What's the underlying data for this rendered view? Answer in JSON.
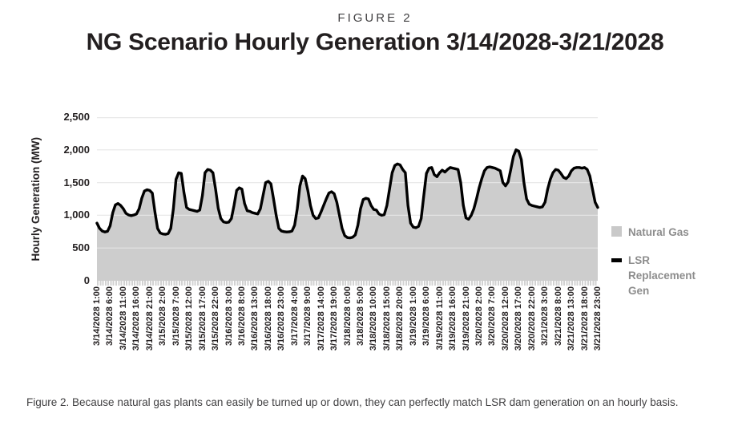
{
  "figure_label": "FIGURE 2",
  "title": "NG Scenario Hourly Generation 3/14/2028-3/21/2028",
  "caption": "Figure 2. Because natural gas plants can easily be turned up or down, they can perfectly match LSR dam generation on an hourly basis.",
  "legend": {
    "items": [
      {
        "label": "Natural Gas",
        "swatch": "square",
        "color": "#c9c9c9"
      },
      {
        "label": "LSR Replacement Gen",
        "swatch": "dash",
        "color": "#000000"
      }
    ]
  },
  "colors": {
    "background": "#ffffff",
    "area_fill": "#cdcdcd",
    "line": "#000000",
    "gridline": "#d9d9d9",
    "axis_text": "#231f20",
    "title_text": "#231f20",
    "figure_label_text": "#414042",
    "legend_text": "#8d8d8d",
    "caption_text": "#414042"
  },
  "chart_data": {
    "type": "area",
    "title": "NG Scenario Hourly Generation 3/14/2028-3/21/2028",
    "xlabel": "",
    "ylabel": "Hourly Generation (MW)",
    "ylim": [
      0,
      2500
    ],
    "ytick_values": [
      0,
      500,
      1000,
      1500,
      2000,
      2500
    ],
    "ytick_labels": [
      "0",
      "500",
      "1,000",
      "1,500",
      "2,000",
      "2,500"
    ],
    "grid": "horizontal",
    "legend_position": "right",
    "x_unit": "hour",
    "x_start": "3/14/2028 1:00",
    "x_end": "3/21/2028 23:00",
    "x_tick_interval_hours": 5,
    "x_tick_labels": [
      "3/14/2028 1:00",
      "3/14/2028 6:00",
      "3/14/2028 11:00",
      "3/14/2028 16:00",
      "3/14/2028 21:00",
      "3/15/2028 2:00",
      "3/15/2028 7:00",
      "3/15/2028 12:00",
      "3/15/2028 17:00",
      "3/15/2028 22:00",
      "3/16/2028 3:00",
      "3/16/2028 8:00",
      "3/16/2028 13:00",
      "3/16/2028 18:00",
      "3/16/2028 23:00",
      "3/17/2028 4:00",
      "3/17/2028 9:00",
      "3/17/2028 14:00",
      "3/17/2028 19:00",
      "3/18/2028 0:00",
      "3/18/2028 5:00",
      "3/18/2028 10:00",
      "3/18/2028 15:00",
      "3/18/2028 20:00",
      "3/19/2028 1:00",
      "3/19/2028 6:00",
      "3/19/2028 11:00",
      "3/19/2028 16:00",
      "3/19/2028 21:00",
      "3/20/2028 2:00",
      "3/20/2028 7:00",
      "3/20/2028 12:00",
      "3/20/2028 17:00",
      "3/20/2028 22:00",
      "3/21/2028 3:00",
      "3/21/2028 8:00",
      "3/21/2028 13:00",
      "3/21/2028 18:00",
      "3/21/2028 23:00"
    ],
    "series": [
      {
        "name": "Natural Gas",
        "render": "area",
        "color": "#cdcdcd",
        "values": [
          880,
          800,
          760,
          745,
          755,
          840,
          1040,
          1160,
          1180,
          1150,
          1100,
          1030,
          1005,
          995,
          1005,
          1020,
          1100,
          1260,
          1370,
          1390,
          1380,
          1340,
          1050,
          800,
          730,
          715,
          710,
          720,
          800,
          1100,
          1550,
          1650,
          1640,
          1350,
          1120,
          1090,
          1080,
          1070,
          1060,
          1080,
          1300,
          1650,
          1700,
          1690,
          1650,
          1400,
          1110,
          950,
          900,
          890,
          895,
          950,
          1150,
          1380,
          1420,
          1400,
          1180,
          1070,
          1060,
          1040,
          1030,
          1020,
          1100,
          1300,
          1500,
          1520,
          1480,
          1250,
          1000,
          800,
          760,
          750,
          745,
          748,
          760,
          850,
          1100,
          1450,
          1600,
          1560,
          1380,
          1150,
          1000,
          950,
          960,
          1050,
          1150,
          1250,
          1340,
          1360,
          1330,
          1200,
          1000,
          800,
          690,
          660,
          655,
          665,
          700,
          850,
          1100,
          1240,
          1260,
          1250,
          1150,
          1090,
          1080,
          1020,
          1000,
          1010,
          1150,
          1400,
          1650,
          1760,
          1785,
          1770,
          1700,
          1650,
          1150,
          880,
          820,
          810,
          830,
          950,
          1300,
          1640,
          1720,
          1730,
          1620,
          1590,
          1650,
          1690,
          1660,
          1700,
          1730,
          1720,
          1710,
          1700,
          1500,
          1150,
          960,
          940,
          1000,
          1100,
          1250,
          1420,
          1560,
          1680,
          1730,
          1740,
          1730,
          1720,
          1700,
          1680,
          1500,
          1450,
          1510,
          1700,
          1900,
          2000,
          1980,
          1850,
          1500,
          1250,
          1170,
          1150,
          1140,
          1130,
          1120,
          1130,
          1200,
          1400,
          1550,
          1650,
          1700,
          1690,
          1640,
          1580,
          1560,
          1600,
          1680,
          1720,
          1730,
          1730,
          1720,
          1730,
          1700,
          1600,
          1400,
          1200,
          1120
        ]
      },
      {
        "name": "LSR Replacement Gen",
        "render": "line",
        "color": "#000000",
        "values_note": "identical to the Natural Gas series; the black line traces the same hourly values"
      }
    ]
  }
}
